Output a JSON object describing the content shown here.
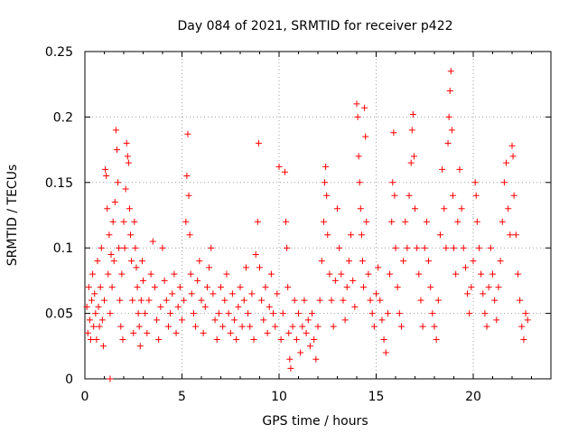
{
  "chart_data": {
    "type": "scatter",
    "title": "Day 084 of 2021, SRMTID for receiver p422",
    "xlabel": "GPS time / hours",
    "ylabel": "SRMTID / TECUs",
    "xlim": [
      0,
      24
    ],
    "ylim": [
      0,
      0.25
    ],
    "xticks": [
      0,
      5,
      10,
      15,
      20
    ],
    "xtick_labels": [
      "0",
      "5",
      "10",
      "15",
      "20"
    ],
    "yticks": [
      0,
      0.05,
      0.1,
      0.15,
      0.2,
      0.25
    ],
    "ytick_labels": [
      "0",
      "0.05",
      "0.1",
      "0.15",
      "0.2",
      "0.25"
    ],
    "grid": true,
    "marker": "+",
    "series": [
      {
        "name": "SRMTID",
        "color": "#ff0000",
        "points": [
          [
            0.1,
            0.055
          ],
          [
            0.15,
            0.035
          ],
          [
            0.2,
            0.07
          ],
          [
            0.25,
            0.045
          ],
          [
            0.3,
            0.03
          ],
          [
            0.35,
            0.06
          ],
          [
            0.4,
            0.08
          ],
          [
            0.45,
            0.04
          ],
          [
            0.5,
            0.065
          ],
          [
            0.55,
            0.05
          ],
          [
            0.6,
            0.03
          ],
          [
            0.65,
            0.09
          ],
          [
            0.7,
            0.055
          ],
          [
            0.75,
            0.04
          ],
          [
            0.8,
            0.07
          ],
          [
            0.85,
            0.1
          ],
          [
            0.9,
            0.045
          ],
          [
            0.95,
            0.025
          ],
          [
            1.0,
            0.06
          ],
          [
            1.05,
            0.16
          ],
          [
            1.1,
            0.155
          ],
          [
            1.15,
            0.13
          ],
          [
            1.2,
            0.08
          ],
          [
            1.25,
            0.11
          ],
          [
            1.3,
            0.05
          ],
          [
            1.35,
            0.095
          ],
          [
            1.4,
            0.07
          ],
          [
            1.45,
            0.12
          ],
          [
            1.5,
            0.09
          ],
          [
            1.55,
            0.135
          ],
          [
            1.6,
            0.19
          ],
          [
            1.65,
            0.175
          ],
          [
            1.7,
            0.15
          ],
          [
            1.75,
            0.1
          ],
          [
            1.8,
            0.06
          ],
          [
            1.85,
            0.04
          ],
          [
            1.9,
            0.08
          ],
          [
            1.95,
            0.03
          ],
          [
            2.0,
            0.12
          ],
          [
            2.05,
            0.1
          ],
          [
            2.1,
            0.145
          ],
          [
            2.15,
            0.18
          ],
          [
            2.2,
            0.17
          ],
          [
            2.25,
            0.165
          ],
          [
            2.3,
            0.13
          ],
          [
            2.35,
            0.11
          ],
          [
            2.4,
            0.09
          ],
          [
            2.45,
            0.06
          ],
          [
            2.5,
            0.035
          ],
          [
            2.55,
            0.12
          ],
          [
            2.6,
            0.1
          ],
          [
            2.65,
            0.085
          ],
          [
            2.7,
            0.07
          ],
          [
            2.75,
            0.05
          ],
          [
            2.8,
            0.04
          ],
          [
            2.85,
            0.025
          ],
          [
            2.9,
            0.06
          ],
          [
            2.95,
            0.09
          ],
          [
            3.0,
            0.075
          ],
          [
            3.1,
            0.05
          ],
          [
            3.2,
            0.035
          ],
          [
            3.3,
            0.06
          ],
          [
            3.4,
            0.08
          ],
          [
            3.5,
            0.105
          ],
          [
            3.6,
            0.07
          ],
          [
            3.7,
            0.045
          ],
          [
            3.8,
            0.03
          ],
          [
            3.9,
            0.055
          ],
          [
            4.0,
            0.1
          ],
          [
            4.1,
            0.075
          ],
          [
            4.2,
            0.06
          ],
          [
            4.3,
            0.04
          ],
          [
            4.4,
            0.05
          ],
          [
            4.5,
            0.065
          ],
          [
            4.6,
            0.08
          ],
          [
            4.7,
            0.035
          ],
          [
            4.8,
            0.055
          ],
          [
            4.9,
            0.07
          ],
          [
            5.0,
            0.045
          ],
          [
            5.1,
            0.06
          ],
          [
            5.2,
            0.12
          ],
          [
            5.25,
            0.155
          ],
          [
            5.3,
            0.187
          ],
          [
            5.35,
            0.14
          ],
          [
            5.4,
            0.11
          ],
          [
            5.45,
            0.08
          ],
          [
            5.5,
            0.065
          ],
          [
            5.6,
            0.05
          ],
          [
            5.7,
            0.04
          ],
          [
            5.8,
            0.075
          ],
          [
            5.9,
            0.09
          ],
          [
            6.0,
            0.06
          ],
          [
            6.1,
            0.035
          ],
          [
            6.2,
            0.055
          ],
          [
            6.3,
            0.07
          ],
          [
            6.4,
            0.085
          ],
          [
            6.5,
            0.1
          ],
          [
            6.6,
            0.065
          ],
          [
            6.7,
            0.045
          ],
          [
            6.8,
            0.03
          ],
          [
            6.9,
            0.05
          ],
          [
            7.0,
            0.07
          ],
          [
            7.1,
            0.04
          ],
          [
            7.2,
            0.06
          ],
          [
            7.3,
            0.08
          ],
          [
            7.4,
            0.05
          ],
          [
            7.5,
            0.035
          ],
          [
            7.6,
            0.065
          ],
          [
            7.7,
            0.045
          ],
          [
            7.8,
            0.03
          ],
          [
            7.9,
            0.055
          ],
          [
            8.0,
            0.07
          ],
          [
            8.1,
            0.04
          ],
          [
            8.2,
            0.06
          ],
          [
            8.3,
            0.085
          ],
          [
            8.4,
            0.05
          ],
          [
            8.5,
            0.04
          ],
          [
            8.6,
            0.065
          ],
          [
            8.7,
            0.03
          ],
          [
            8.8,
            0.095
          ],
          [
            8.9,
            0.12
          ],
          [
            8.95,
            0.18
          ],
          [
            9.0,
            0.085
          ],
          [
            9.1,
            0.06
          ],
          [
            9.2,
            0.045
          ],
          [
            9.3,
            0.07
          ],
          [
            9.4,
            0.035
          ],
          [
            9.5,
            0.055
          ],
          [
            9.6,
            0.08
          ],
          [
            9.7,
            0.05
          ],
          [
            9.8,
            0.04
          ],
          [
            9.9,
            0.065
          ],
          [
            10.0,
            0.162
          ],
          [
            10.1,
            0.03
          ],
          [
            10.2,
            0.05
          ],
          [
            10.3,
            0.158
          ],
          [
            10.35,
            0.12
          ],
          [
            10.4,
            0.1
          ],
          [
            10.45,
            0.07
          ],
          [
            10.5,
            0.035
          ],
          [
            10.55,
            0.015
          ],
          [
            10.6,
            0.008
          ],
          [
            10.7,
            0.04
          ],
          [
            10.8,
            0.06
          ],
          [
            10.9,
            0.03
          ],
          [
            11.0,
            0.05
          ],
          [
            11.1,
            0.02
          ],
          [
            11.2,
            0.04
          ],
          [
            11.3,
            0.06
          ],
          [
            11.4,
            0.035
          ],
          [
            11.5,
            0.045
          ],
          [
            11.6,
            0.025
          ],
          [
            11.7,
            0.05
          ],
          [
            11.8,
            0.03
          ],
          [
            11.9,
            0.015
          ],
          [
            12.0,
            0.04
          ],
          [
            12.1,
            0.06
          ],
          [
            12.2,
            0.09
          ],
          [
            12.3,
            0.12
          ],
          [
            12.35,
            0.15
          ],
          [
            12.4,
            0.162
          ],
          [
            12.45,
            0.14
          ],
          [
            12.5,
            0.11
          ],
          [
            12.6,
            0.08
          ],
          [
            12.7,
            0.06
          ],
          [
            12.8,
            0.04
          ],
          [
            12.9,
            0.075
          ],
          [
            13.0,
            0.13
          ],
          [
            13.1,
            0.1
          ],
          [
            13.2,
            0.08
          ],
          [
            13.3,
            0.06
          ],
          [
            13.4,
            0.045
          ],
          [
            13.5,
            0.07
          ],
          [
            13.6,
            0.09
          ],
          [
            13.7,
            0.11
          ],
          [
            13.8,
            0.075
          ],
          [
            13.9,
            0.055
          ],
          [
            14.0,
            0.21
          ],
          [
            14.05,
            0.2
          ],
          [
            14.1,
            0.17
          ],
          [
            14.15,
            0.15
          ],
          [
            14.2,
            0.13
          ],
          [
            14.25,
            0.11
          ],
          [
            14.3,
            0.09
          ],
          [
            14.35,
            0.07
          ],
          [
            14.4,
            0.207
          ],
          [
            14.45,
            0.185
          ],
          [
            14.5,
            0.12
          ],
          [
            14.6,
            0.08
          ],
          [
            14.7,
            0.06
          ],
          [
            14.8,
            0.05
          ],
          [
            14.9,
            0.04
          ],
          [
            15.0,
            0.065
          ],
          [
            15.1,
            0.085
          ],
          [
            15.2,
            0.06
          ],
          [
            15.3,
            0.045
          ],
          [
            15.4,
            0.03
          ],
          [
            15.5,
            0.02
          ],
          [
            15.6,
            0.05
          ],
          [
            15.7,
            0.08
          ],
          [
            15.8,
            0.12
          ],
          [
            15.85,
            0.15
          ],
          [
            15.9,
            0.188
          ],
          [
            15.95,
            0.14
          ],
          [
            16.0,
            0.1
          ],
          [
            16.1,
            0.07
          ],
          [
            16.2,
            0.05
          ],
          [
            16.3,
            0.04
          ],
          [
            16.4,
            0.09
          ],
          [
            16.5,
            0.12
          ],
          [
            16.6,
            0.1
          ],
          [
            16.7,
            0.14
          ],
          [
            16.8,
            0.165
          ],
          [
            16.85,
            0.19
          ],
          [
            16.9,
            0.202
          ],
          [
            16.95,
            0.17
          ],
          [
            17.0,
            0.13
          ],
          [
            17.1,
            0.1
          ],
          [
            17.2,
            0.08
          ],
          [
            17.3,
            0.06
          ],
          [
            17.4,
            0.04
          ],
          [
            17.5,
            0.1
          ],
          [
            17.6,
            0.12
          ],
          [
            17.7,
            0.09
          ],
          [
            17.8,
            0.07
          ],
          [
            17.9,
            0.05
          ],
          [
            18.0,
            0.04
          ],
          [
            18.1,
            0.03
          ],
          [
            18.2,
            0.06
          ],
          [
            18.3,
            0.11
          ],
          [
            18.4,
            0.16
          ],
          [
            18.5,
            0.13
          ],
          [
            18.6,
            0.1
          ],
          [
            18.7,
            0.18
          ],
          [
            18.75,
            0.2
          ],
          [
            18.8,
            0.22
          ],
          [
            18.85,
            0.235
          ],
          [
            18.9,
            0.19
          ],
          [
            18.95,
            0.14
          ],
          [
            19.0,
            0.1
          ],
          [
            19.1,
            0.08
          ],
          [
            19.2,
            0.12
          ],
          [
            19.3,
            0.16
          ],
          [
            19.4,
            0.13
          ],
          [
            19.5,
            0.1
          ],
          [
            19.6,
            0.085
          ],
          [
            19.7,
            0.065
          ],
          [
            19.8,
            0.05
          ],
          [
            19.9,
            0.07
          ],
          [
            20.0,
            0.09
          ],
          [
            20.1,
            0.15
          ],
          [
            20.15,
            0.14
          ],
          [
            20.2,
            0.12
          ],
          [
            20.3,
            0.1
          ],
          [
            20.4,
            0.08
          ],
          [
            20.5,
            0.065
          ],
          [
            20.6,
            0.05
          ],
          [
            20.7,
            0.04
          ],
          [
            20.8,
            0.07
          ],
          [
            20.9,
            0.1
          ],
          [
            21.0,
            0.08
          ],
          [
            21.1,
            0.06
          ],
          [
            21.2,
            0.045
          ],
          [
            21.3,
            0.07
          ],
          [
            21.4,
            0.09
          ],
          [
            21.5,
            0.12
          ],
          [
            21.6,
            0.15
          ],
          [
            21.7,
            0.165
          ],
          [
            21.8,
            0.13
          ],
          [
            21.9,
            0.11
          ],
          [
            22.0,
            0.178
          ],
          [
            22.05,
            0.17
          ],
          [
            22.1,
            0.14
          ],
          [
            22.2,
            0.11
          ],
          [
            22.3,
            0.08
          ],
          [
            22.4,
            0.06
          ],
          [
            22.5,
            0.04
          ],
          [
            22.6,
            0.03
          ],
          [
            22.7,
            0.05
          ],
          [
            22.8,
            0.045
          ],
          [
            1.3,
            0.0
          ]
        ]
      }
    ]
  }
}
